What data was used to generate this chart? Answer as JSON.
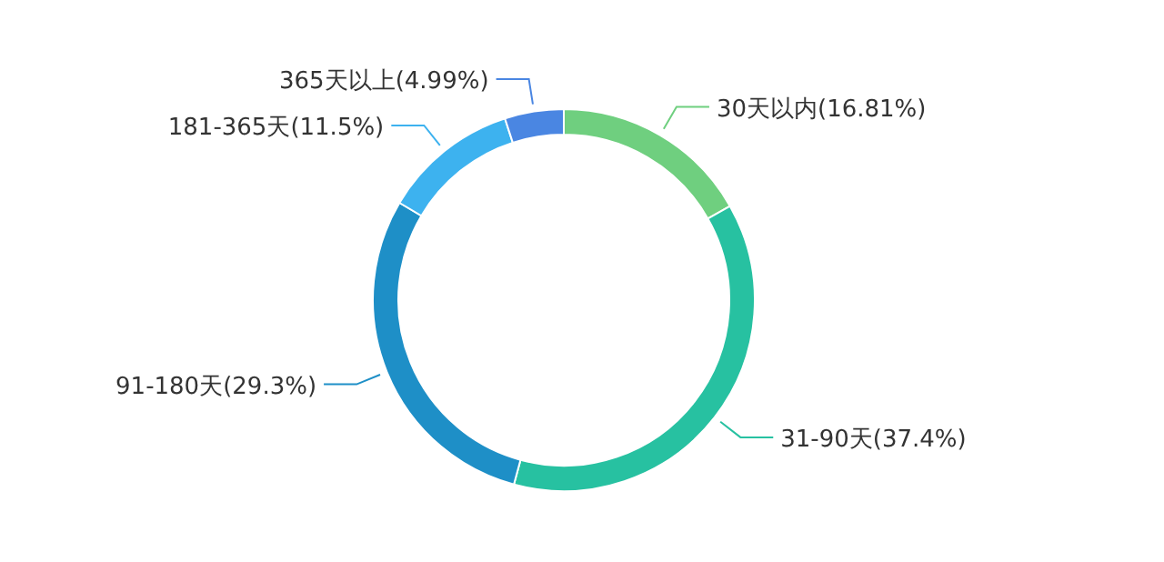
{
  "chart_data": {
    "type": "donut",
    "categories": [
      "30天以内(16.81%)",
      "31-90天(37.4%)",
      "91-180天(29.3%)",
      "181-365天(11.5%)",
      "365天以上(4.99%)"
    ],
    "values": [
      16.81,
      37.4,
      29.3,
      11.5,
      4.99
    ],
    "colors": [
      "#6fcf7f",
      "#27c1a1",
      "#1e8fc7",
      "#3db2ef",
      "#4a86e2"
    ]
  }
}
